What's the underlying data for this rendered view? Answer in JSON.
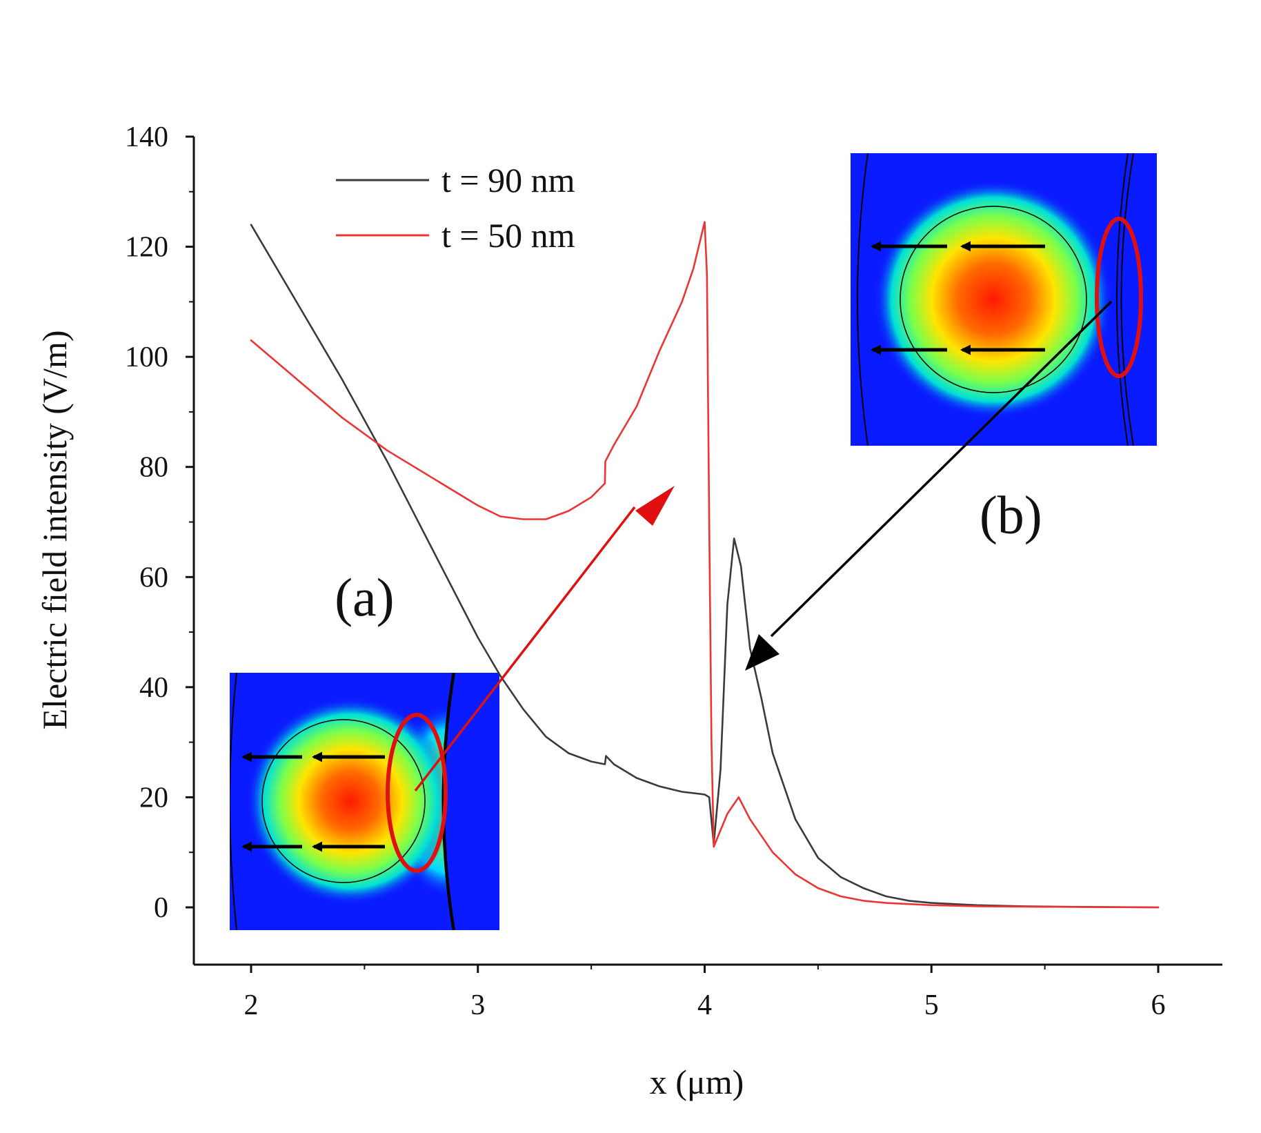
{
  "chart_data": {
    "type": "line",
    "title": "",
    "xlabel": "x (μm)",
    "ylabel": "Electric field  intensity (V/m)",
    "xlim": [
      1.75,
      6.25
    ],
    "ylim": [
      -10,
      140
    ],
    "xticks": [
      2,
      3,
      4,
      5,
      6
    ],
    "yticks": [
      0,
      20,
      40,
      60,
      80,
      100,
      120,
      140
    ],
    "xtick_labels": [
      "2",
      "3",
      "4",
      "5",
      "6"
    ],
    "ytick_labels": [
      "0",
      "20",
      "40",
      "60",
      "80",
      "100",
      "120",
      "140"
    ],
    "legend_position": "top-left",
    "series": [
      {
        "name": "t = 90 nm",
        "color": "#3a3a3a",
        "x": [
          2.0,
          2.2,
          2.4,
          2.6,
          2.8,
          3.0,
          3.1,
          3.2,
          3.3,
          3.4,
          3.5,
          3.56,
          3.565,
          3.6,
          3.7,
          3.8,
          3.9,
          4.0,
          4.02,
          4.04,
          4.07,
          4.1,
          4.13,
          4.16,
          4.2,
          4.25,
          4.3,
          4.4,
          4.5,
          4.6,
          4.7,
          4.8,
          4.9,
          5.0,
          5.2,
          5.4,
          5.6,
          6.0
        ],
        "y": [
          124,
          110,
          96,
          81,
          65,
          49,
          42,
          36,
          31,
          28,
          26.5,
          26,
          27.5,
          26,
          23.5,
          22,
          21,
          20.5,
          20,
          11.5,
          25,
          55,
          67,
          62,
          47,
          38,
          28,
          16,
          9,
          5.5,
          3.5,
          2,
          1.2,
          0.8,
          0.4,
          0.2,
          0.1,
          0
        ]
      },
      {
        "name": "t = 50 nm",
        "color": "#ee3333",
        "x": [
          2.0,
          2.2,
          2.4,
          2.6,
          2.8,
          3.0,
          3.1,
          3.2,
          3.3,
          3.4,
          3.5,
          3.56,
          3.562,
          3.6,
          3.7,
          3.8,
          3.9,
          3.95,
          4.0,
          4.01,
          4.02,
          4.03,
          4.04,
          4.07,
          4.1,
          4.15,
          4.2,
          4.3,
          4.4,
          4.5,
          4.6,
          4.7,
          4.8,
          5.0,
          5.2,
          5.5,
          6.0
        ],
        "y": [
          103,
          96,
          89,
          83,
          78,
          73,
          71,
          70.5,
          70.5,
          72,
          74.5,
          77,
          81,
          84,
          91,
          101,
          110,
          116,
          124.5,
          115,
          70,
          30,
          11,
          14,
          17,
          20,
          16,
          10,
          6,
          3.5,
          2,
          1.2,
          0.8,
          0.4,
          0.2,
          0.1,
          0
        ]
      }
    ],
    "annotations": [
      {
        "label": "(a)",
        "x": 2.5,
        "y": 53
      },
      {
        "label": "(b)",
        "x": 5.35,
        "y": 68
      }
    ]
  }
}
